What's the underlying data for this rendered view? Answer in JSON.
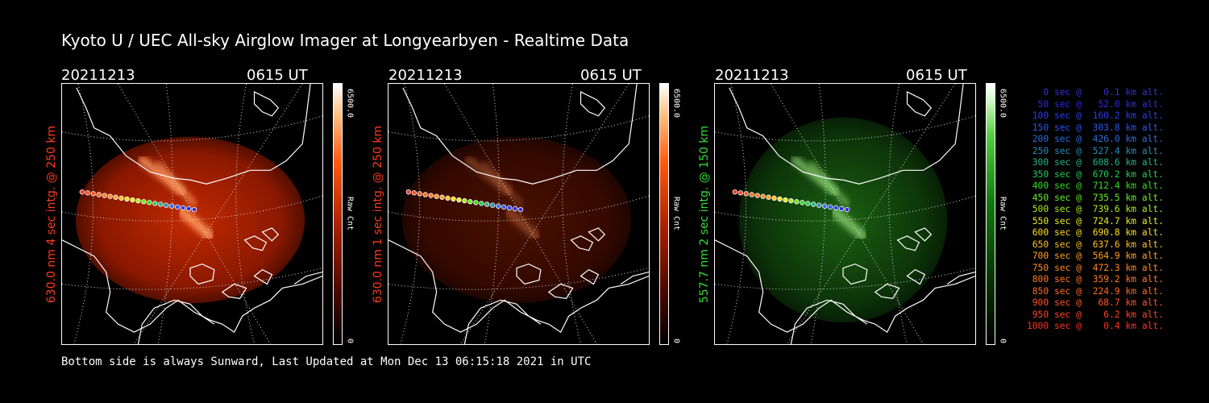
{
  "title": "Kyoto U / UEC All-sky Airglow Imager at Longyearbyen - Realtime Data",
  "footer": "Bottom side is always Sunward, Last Updated at Mon Dec 13 06:15:18 2021 in UTC",
  "panels": [
    {
      "date": "20211213",
      "time": "0615 UT",
      "ylabel": "630.0 nm 4 sec intg. @ 250 km",
      "label_color": "#ff3a1a",
      "cbar_max": "6500.0",
      "cbar_min": "0",
      "cbar_unit": "Raw Cnt",
      "theme": "red",
      "intensity": "bright"
    },
    {
      "date": "20211213",
      "time": "0615 UT",
      "ylabel": "630.0 nm 1 sec intg. @ 250 km",
      "label_color": "#ff3a1a",
      "cbar_max": "6500.0",
      "cbar_min": "0",
      "cbar_unit": "Raw Cnt",
      "theme": "red",
      "intensity": "dim"
    },
    {
      "date": "20211213",
      "time": "0615 UT",
      "ylabel": "557.7 nm 2 sec intg. @ 150 km",
      "label_color": "#33dd33",
      "cbar_max": "6500.0",
      "cbar_min": "0",
      "cbar_unit": "Raw Cnt",
      "theme": "green",
      "intensity": "medium"
    }
  ],
  "legend": [
    {
      "text": "   0 sec @    0.1 km alt.",
      "color": "#3a2bd8"
    },
    {
      "text": "  50 sec @   52.0 km alt.",
      "color": "#2b2bea"
    },
    {
      "text": " 100 sec @  160.2 km alt.",
      "color": "#2b3cf0"
    },
    {
      "text": " 150 sec @  303.8 km alt.",
      "color": "#2b55f0"
    },
    {
      "text": " 200 sec @  426.0 km alt.",
      "color": "#2b6fe0"
    },
    {
      "text": " 250 sec @  527.4 km alt.",
      "color": "#2a8cb8"
    },
    {
      "text": " 300 sec @  608.6 km alt.",
      "color": "#22b488"
    },
    {
      "text": " 350 sec @  670.2 km alt.",
      "color": "#22cc55"
    },
    {
      "text": " 400 sec @  712.4 km alt.",
      "color": "#33dd22"
    },
    {
      "text": " 450 sec @  735.5 km alt.",
      "color": "#66ee22"
    },
    {
      "text": " 500 sec @  739.6 km alt.",
      "color": "#aaee22"
    },
    {
      "text": " 550 sec @  724.7 km alt.",
      "color": "#e6ee22"
    },
    {
      "text": " 600 sec @  690.8 km alt.",
      "color": "#ffdd22"
    },
    {
      "text": " 650 sec @  637.6 km alt.",
      "color": "#ffc022"
    },
    {
      "text": " 700 sec @  564.9 km alt.",
      "color": "#ffa022"
    },
    {
      "text": " 750 sec @  472.3 km alt.",
      "color": "#ff8a22"
    },
    {
      "text": " 800 sec @  359.2 km alt.",
      "color": "#ff7a22"
    },
    {
      "text": " 850 sec @  224.9 km alt.",
      "color": "#ff6a22"
    },
    {
      "text": " 900 sec @   68.7 km alt.",
      "color": "#ff5522"
    },
    {
      "text": " 950 sec @    6.2 km alt.",
      "color": "#ff4422"
    },
    {
      "text": "1000 sec @    0.4 km alt.",
      "color": "#ff3322"
    }
  ]
}
